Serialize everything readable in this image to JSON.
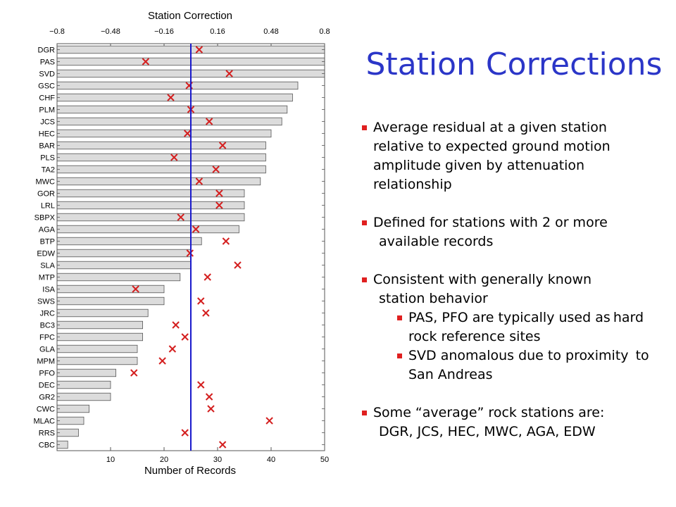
{
  "slide": {
    "title": "Station Corrections",
    "bullets": [
      {
        "lines": [
          "Average residual at a given station",
          "relative to expected ground motion",
          "amplitude given by attenuation",
          "relationship"
        ]
      },
      {
        "lines": [
          "Defined for stations with 2 or more",
          "available records"
        ]
      },
      {
        "lines": [
          "Consistent with generally known",
          "station behavior"
        ],
        "sub": [
          {
            "lines": [
              "PAS, PFO are typically used as",
              "hard rock reference sites"
            ]
          },
          {
            "lines": [
              "SVD anomalous due to proximity",
              "to San Andreas"
            ]
          }
        ]
      },
      {
        "lines": [
          "Some “average” rock stations are:",
          "DGR, JCS, HEC, MWC, AGA, EDW"
        ]
      }
    ]
  },
  "chart_data": {
    "type": "bar",
    "orientation": "horizontal",
    "top_axis_title": "Station Correction",
    "bottom_axis_title": "Number of Records",
    "top_ticks": [
      "−0.8",
      "−0.48",
      "−0.16",
      "0.16",
      "0.48",
      "0.8"
    ],
    "top_range": [
      -0.8,
      0.8
    ],
    "bottom_ticks": [
      "10",
      "20",
      "30",
      "40",
      "50"
    ],
    "bottom_range": [
      0,
      50
    ],
    "zero_line": 0,
    "colors": {
      "bar_fill": "#dcdcdc",
      "bar_stroke": "#555555",
      "marker": "#d42020",
      "zero_line": "#1a1acc"
    },
    "stations": [
      "DGR",
      "PAS",
      "SVD",
      "GSC",
      "CHF",
      "PLM",
      "JCS",
      "HEC",
      "BAR",
      "PLS",
      "TA2",
      "MWC",
      "GOR",
      "LRL",
      "SBPX",
      "AGA",
      "BTP",
      "EDW",
      "SLA",
      "MTP",
      "ISA",
      "SWS",
      "JRC",
      "BC3",
      "FPC",
      "GLA",
      "MPM",
      "PFO",
      "DEC",
      "GR2",
      "CWC",
      "MLAC",
      "RRS",
      "CBC"
    ],
    "num_records": [
      50,
      50,
      50,
      45,
      44,
      43,
      42,
      40,
      39,
      39,
      39,
      38,
      35,
      35,
      35,
      34,
      27,
      25,
      25,
      23,
      20,
      20,
      17,
      16,
      16,
      15,
      15,
      11,
      10,
      10,
      6,
      5,
      4,
      2
    ],
    "corrections": [
      0.05,
      -0.27,
      0.23,
      -0.01,
      -0.12,
      0.0,
      0.11,
      -0.02,
      0.19,
      -0.1,
      0.15,
      0.05,
      0.17,
      0.17,
      -0.06,
      0.03,
      0.21,
      -0.005,
      0.28,
      0.1,
      -0.33,
      0.06,
      0.09,
      -0.09,
      -0.035,
      -0.11,
      -0.17,
      -0.34,
      0.06,
      0.11,
      0.12,
      0.47,
      -0.035,
      0.19
    ]
  }
}
